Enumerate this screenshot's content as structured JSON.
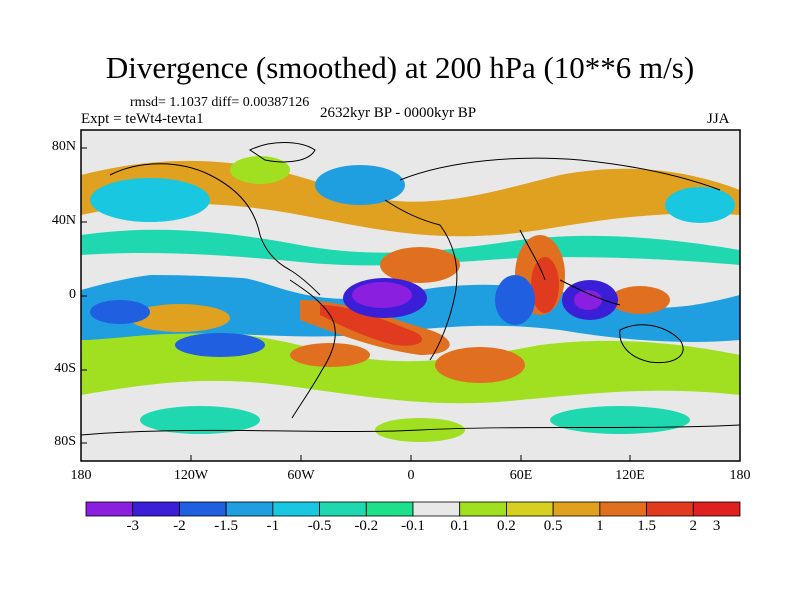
{
  "title": "Divergence (smoothed) at 200 hPa (10**6 m/s)",
  "stats": "rmsd= 1.1037 diff= 0.00387126",
  "experiment": "Expt = teWt4-tevta1",
  "period": "2632kyr BP - 0000kyr BP",
  "season": "JJA",
  "lat_ticks": [
    "80N",
    "40N",
    "0",
    "40S",
    "80S"
  ],
  "lon_ticks": [
    "180",
    "120W",
    "60W",
    "0",
    "60E",
    "120E",
    "180"
  ],
  "colorbar": {
    "labels": [
      "-3",
      "-2",
      "-1.5",
      "-1",
      "-0.5",
      "-0.2",
      "-0.1",
      "0.1",
      "0.2",
      "0.5",
      "1",
      "1.5",
      "2",
      "3"
    ],
    "colors": [
      "#8a1fe0",
      "#3a1fd6",
      "#1f5fe0",
      "#1f9fe0",
      "#19c8e0",
      "#20d8b0",
      "#1fe08a",
      "#e8e8e8",
      "#a0e020",
      "#d8d020",
      "#e0a020",
      "#e07020",
      "#e03a1f",
      "#e01f1f"
    ]
  },
  "palette": {
    "strongneg": "#8a1fe0",
    "neg2": "#3a1fd6",
    "neg15": "#1f5fe0",
    "neg1": "#1f9fe0",
    "neg05": "#19c8e0",
    "neg02": "#20d8b0",
    "neutral": "#e8e8e8",
    "pos02": "#a0e020",
    "pos05": "#d8d020",
    "pos1": "#e0a020",
    "pos15": "#e07020",
    "pos2": "#e03a1f",
    "pos3": "#e01f1f"
  }
}
